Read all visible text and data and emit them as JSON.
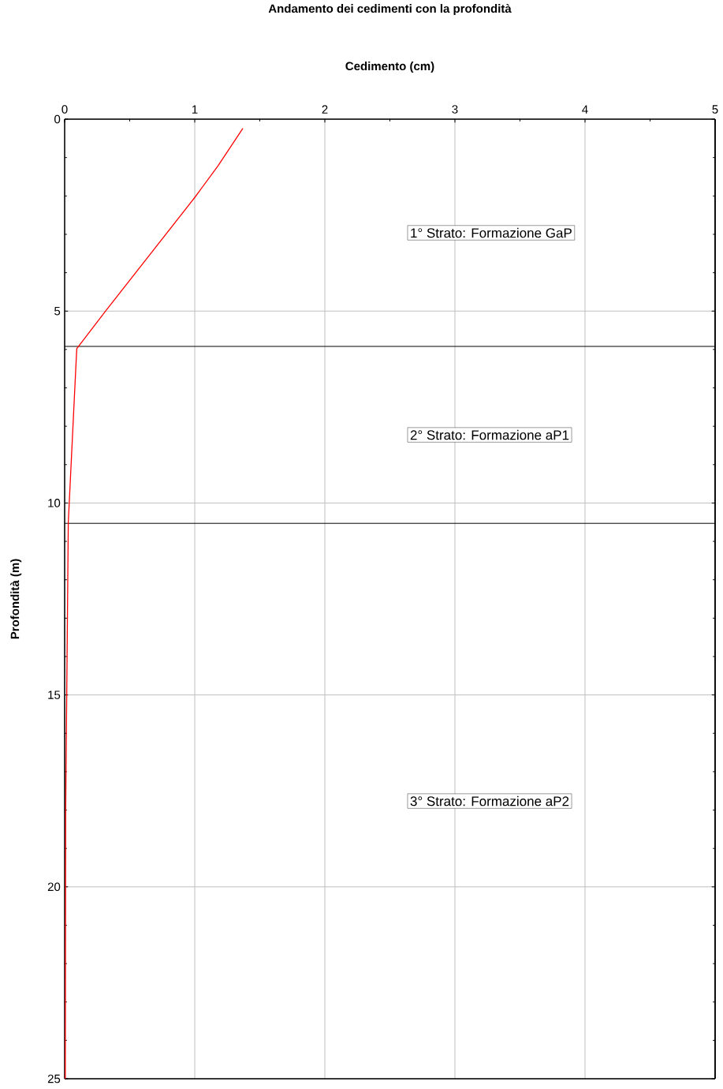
{
  "chart_data": {
    "type": "line",
    "title": "Andamento dei cedimenti con la profondità",
    "xlabel": "Cedimento (cm)",
    "ylabel": "Profondità (m)",
    "x": [
      1.37,
      1.18,
      1.0,
      0.31,
      0.093,
      0.028,
      0.016,
      0.008,
      0.005
    ],
    "series": [
      {
        "color": "#ff0000",
        "values": [
          0.24,
          1.21,
          2.04,
          5.02,
          5.98,
          10.5,
          15,
          18,
          25
        ]
      }
    ],
    "xlim": [
      0,
      5
    ],
    "xticks": [
      0,
      1,
      2,
      3,
      4,
      5
    ],
    "ylim": [
      25,
      0
    ],
    "yticks": [
      0,
      5,
      10,
      15,
      20,
      25
    ],
    "grid": true,
    "marker": "none",
    "line_style": "solid",
    "ref_lines": [
      {
        "axis": "y",
        "value": 5.92,
        "color": "#000000"
      },
      {
        "axis": "y",
        "value": 10.53,
        "color": "#000000"
      }
    ],
    "annotations": [
      "1° Strato: Formazione GaP",
      "2° Strato: Formazione aP1",
      "3° Strato: Formazione aP2"
    ]
  }
}
